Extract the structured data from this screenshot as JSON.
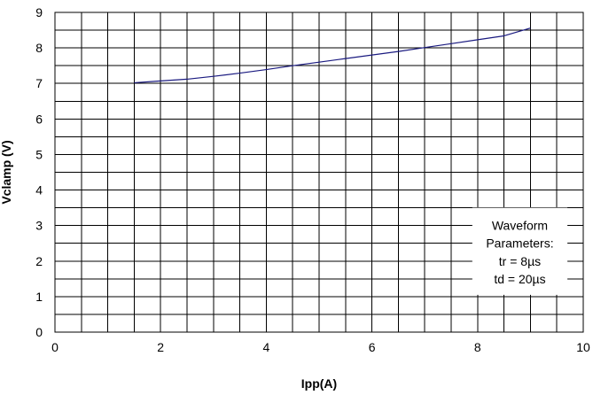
{
  "chart_data": {
    "type": "line",
    "xlabel": "Ipp(A)",
    "ylabel": "Vclamp (V)",
    "xlim": [
      0,
      10
    ],
    "ylim": [
      0,
      9
    ],
    "x_ticks": [
      "0",
      "2",
      "4",
      "6",
      "8",
      "10"
    ],
    "y_ticks": [
      "0",
      "1",
      "2",
      "3",
      "4",
      "5",
      "6",
      "7",
      "8",
      "9"
    ],
    "grid": true,
    "series": [
      {
        "x": [
          1.5,
          2,
          2.5,
          3,
          3.5,
          4,
          4.5,
          5,
          5.5,
          6,
          6.5,
          7,
          7.5,
          8,
          8.5,
          9
        ],
        "y": [
          7.02,
          7.07,
          7.12,
          7.2,
          7.29,
          7.39,
          7.5,
          7.6,
          7.7,
          7.8,
          7.9,
          8.01,
          8.12,
          8.23,
          8.34,
          8.56
        ],
        "color": "#1a1a80"
      }
    ],
    "annotation": {
      "lines": [
        "Waveform",
        "Parameters:",
        "tr = 8µs",
        "td = 20µs"
      ]
    }
  }
}
